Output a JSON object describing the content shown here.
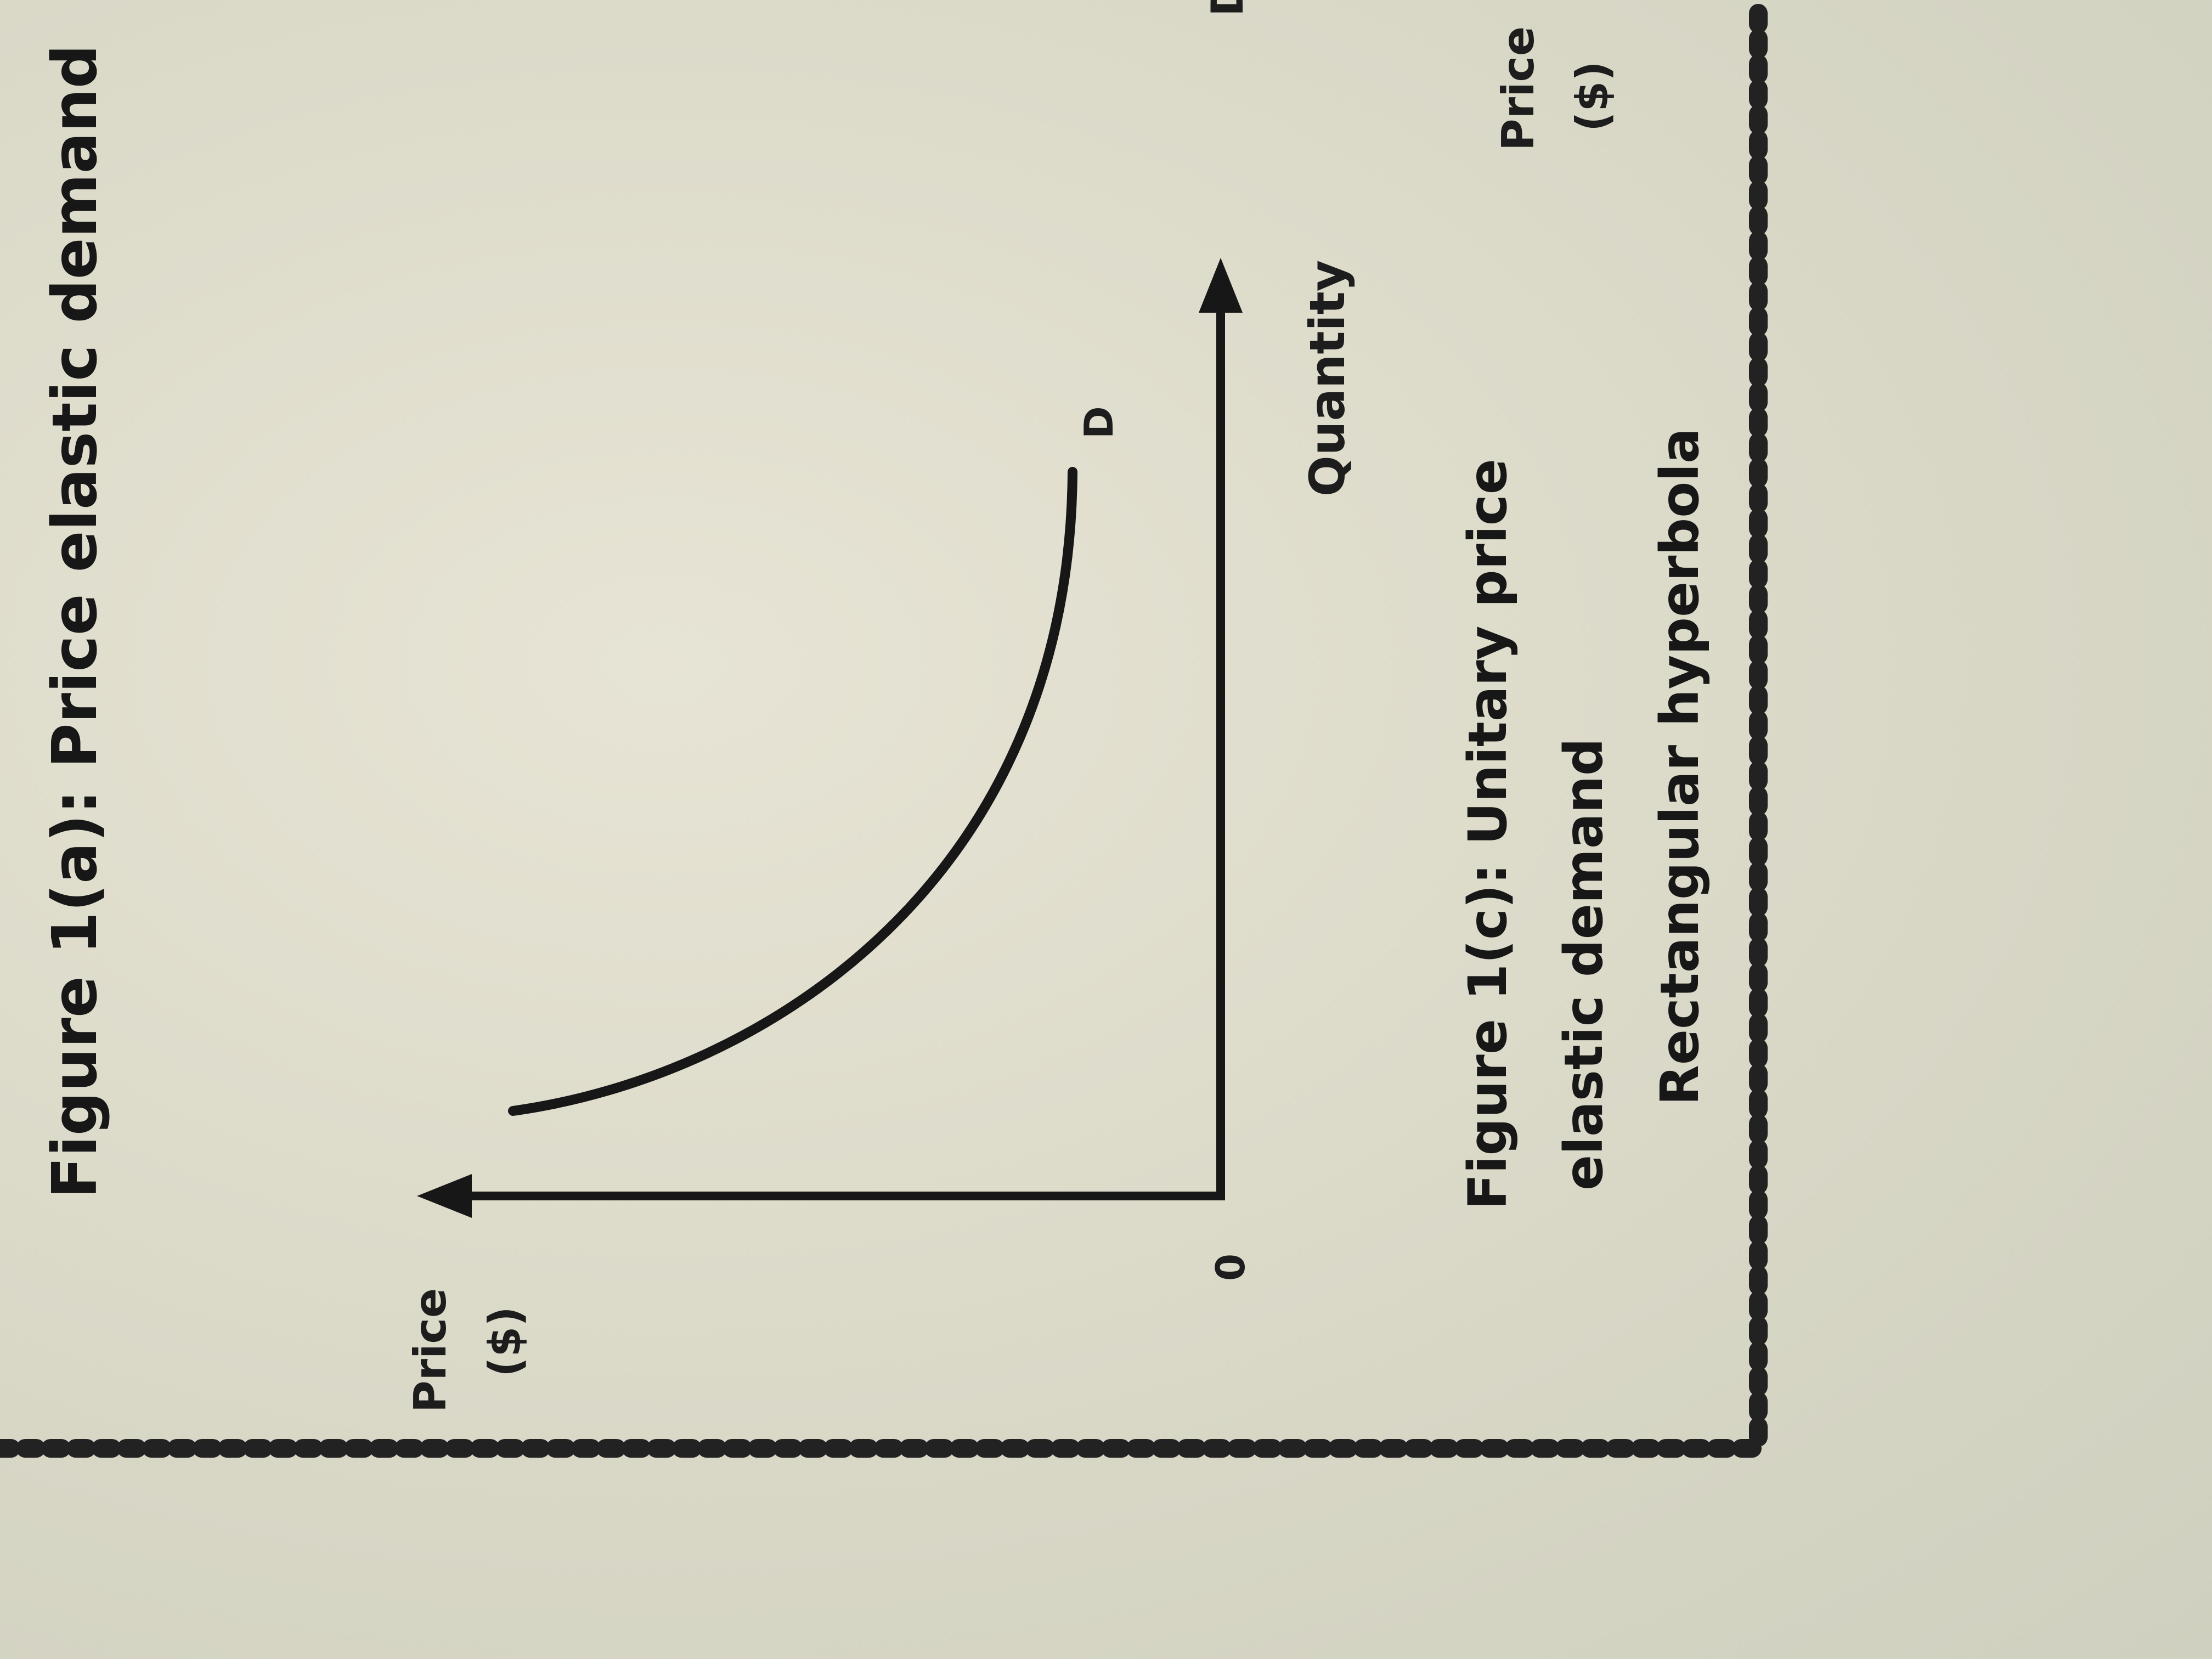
{
  "header": {
    "title": "Figure 1(a): Price elastic demand"
  },
  "diagram": {
    "y_axis_label_line1": "Price",
    "y_axis_label_line2": "($)",
    "x_axis_label": "Quantity",
    "origin_label": "0",
    "curve_label": "D",
    "caption_line1": "Figure 1(c): Unitary price",
    "caption_line2": "elastic demand",
    "caption_line3": "Rectangular hyperbola"
  },
  "next_panel": {
    "y_axis_label_line1": "Price",
    "y_axis_label_line2": "($)",
    "curve_label": "D"
  },
  "colors": {
    "ink": "#171717",
    "paper": "#dcdac9",
    "divider": "#222222"
  }
}
